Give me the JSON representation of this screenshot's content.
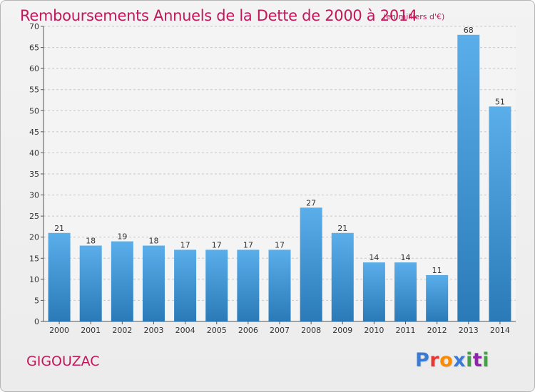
{
  "header": {
    "title": "Remboursements Annuels de la Dette de 2000 à 2014",
    "subtitle": "(en milliers d'€)"
  },
  "footer": {
    "commune": "GIGOUZAC",
    "logo_text": "Proxiti",
    "logo_colors": [
      "#3a7bd5",
      "#e53935",
      "#fb8c00",
      "#3a7bd5",
      "#43a047",
      "#8e24aa",
      "#43a047"
    ]
  },
  "colors": {
    "title": "#c2185b",
    "bar_top": "#5aaeea",
    "bar_bottom": "#2a7ab8",
    "grid": "#c8c8c8",
    "background": "#eeeeee"
  },
  "chart_data": {
    "type": "bar",
    "title": "Remboursements Annuels de la Dette de 2000 à 2014",
    "subtitle": "(en milliers d'€)",
    "xlabel": "",
    "ylabel": "",
    "categories": [
      "2000",
      "2001",
      "2002",
      "2003",
      "2004",
      "2005",
      "2006",
      "2007",
      "2008",
      "2009",
      "2010",
      "2011",
      "2012",
      "2013",
      "2014"
    ],
    "values": [
      21,
      18,
      19,
      18,
      17,
      17,
      17,
      17,
      27,
      21,
      14,
      14,
      11,
      68,
      51
    ],
    "ylim": [
      0,
      70
    ],
    "yticks": [
      0,
      5,
      10,
      15,
      20,
      25,
      30,
      35,
      40,
      45,
      50,
      55,
      60,
      65,
      70
    ],
    "grid": true,
    "data_labels": true
  }
}
